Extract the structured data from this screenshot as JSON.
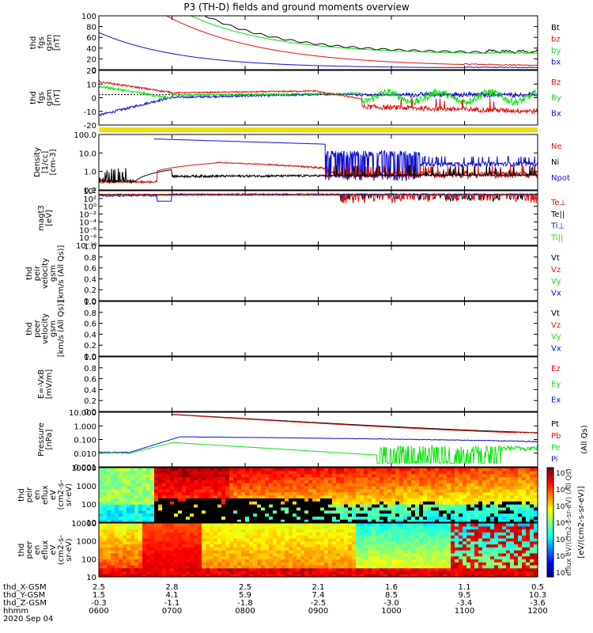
{
  "title": "P3 (TH-D) fields and ground moments overview",
  "date": "2020 Sep 04",
  "colors": {
    "black": "#000000",
    "red": "#e01010",
    "green": "#10e010",
    "blue": "#1010d0",
    "yellow": "#f0e000"
  },
  "chart_data": [
    {
      "type": "line",
      "id": "p1",
      "ylabel": [
        "thd",
        "fgs",
        "gsm",
        "[nT]"
      ],
      "yscale": "linear",
      "ylim": [
        0,
        100
      ],
      "yticks": [
        "100",
        "80",
        "60",
        "40",
        "20",
        "0"
      ],
      "legend": [
        {
          "text": "Bt",
          "color": "#000000"
        },
        {
          "text": "bz",
          "color": "#e01010"
        },
        {
          "text": "by",
          "color": "#10e010"
        },
        {
          "text": "bx",
          "color": "#1010d0"
        }
      ]
    },
    {
      "type": "line",
      "id": "p2",
      "ylabel": [
        "thd",
        "fgs",
        "gsm",
        "[nT]"
      ],
      "yscale": "linear",
      "ylim": [
        -25,
        20
      ],
      "yticks": [
        "20",
        "10",
        "0",
        "-10",
        "-20"
      ],
      "legend": [
        {
          "text": "Bz",
          "color": "#e01010"
        },
        {
          "text": "By",
          "color": "#10e010"
        },
        {
          "text": "Bx",
          "color": "#1010d0"
        }
      ]
    },
    {
      "type": "line",
      "id": "p4",
      "ylabel": [
        "Density",
        "[1/cc]",
        "[cm-3]"
      ],
      "yscale": "log",
      "ylim": [
        0.05,
        300
      ],
      "yticks": [
        "100.0",
        "10.0",
        "1.0",
        "0.1"
      ],
      "legend": [
        {
          "text": "Ne",
          "color": "#e01010"
        },
        {
          "text": "Ni",
          "color": "#000000"
        },
        {
          "text": "Npot",
          "color": "#1010d0"
        }
      ]
    },
    {
      "type": "line",
      "id": "p5",
      "ylabel": [
        "magt3",
        "[eV]"
      ],
      "yscale": "log",
      "ylim": [
        1e-10,
        10000.0
      ],
      "yticks": [
        "10⁴",
        "10²",
        "10⁰",
        "10⁻²",
        "10⁻⁴",
        "10⁻⁶",
        "10⁻⁸",
        "10⁻¹⁰"
      ],
      "legend": [
        {
          "text": "Te⊥",
          "color": "#e01010"
        },
        {
          "text": "Te||",
          "color": "#000000"
        },
        {
          "text": "Ti⊥",
          "color": "#1010d0"
        },
        {
          "text": "Ti||",
          "color": "#10e010"
        }
      ]
    },
    {
      "type": "line",
      "id": "p6",
      "ylabel": [
        "thd",
        "peir",
        "velocity",
        "gsm",
        "[km/s (All Qs)]"
      ],
      "yscale": "linear",
      "ylim": [
        0,
        1
      ],
      "yticks": [
        "1.0",
        "0.8",
        "0.6",
        "0.4",
        "0.2",
        "0.0"
      ],
      "legend": [
        {
          "text": "Vt",
          "color": "#000000"
        },
        {
          "text": "Vz",
          "color": "#e01010"
        },
        {
          "text": "Vy",
          "color": "#10e010"
        },
        {
          "text": "Vx",
          "color": "#1010d0"
        }
      ]
    },
    {
      "type": "line",
      "id": "p7",
      "ylabel": [
        "thd",
        "peer",
        "velocity",
        "gsm",
        "[km/s (All Qs)]"
      ],
      "yscale": "linear",
      "ylim": [
        0,
        1
      ],
      "yticks": [
        "1.0",
        "0.8",
        "0.6",
        "0.4",
        "0.2",
        "0.0"
      ],
      "legend": [
        {
          "text": "Vt",
          "color": "#000000"
        },
        {
          "text": "Vz",
          "color": "#e01010"
        },
        {
          "text": "Vy",
          "color": "#10e010"
        },
        {
          "text": "Vx",
          "color": "#1010d0"
        }
      ]
    },
    {
      "type": "line",
      "id": "p8",
      "ylabel": [
        "E=-VxB",
        "[mV/m]"
      ],
      "yscale": "linear",
      "ylim": [
        0,
        1
      ],
      "yticks": [
        "1.0",
        "0.8",
        "0.6",
        "0.4",
        "0.2",
        "0.0"
      ],
      "legend": [
        {
          "text": "Ez",
          "color": "#e01010"
        },
        {
          "text": "Ey",
          "color": "#10e010"
        },
        {
          "text": "Ex",
          "color": "#1010d0"
        }
      ]
    },
    {
      "type": "line",
      "id": "p9",
      "ylabel": [
        "Pressure",
        "[nPa]"
      ],
      "yscale": "log",
      "ylim": [
        0.001,
        30
      ],
      "yticks": [
        "10.000",
        "1.000",
        "0.100",
        "0.010",
        "0.001"
      ],
      "legend": [
        {
          "text": "Pt",
          "color": "#000000"
        },
        {
          "text": "Pb",
          "color": "#e01010"
        },
        {
          "text": "Pe",
          "color": "#10e010"
        },
        {
          "text": "Pi",
          "color": "#1010d0"
        }
      ],
      "side_label": "(All Qs)"
    },
    {
      "type": "heatmap",
      "id": "p10",
      "ylabel": [
        "thd",
        "peir",
        "en",
        "eflux",
        "eV",
        "(cm2-s-",
        "sr-eV)"
      ],
      "yscale": "log",
      "ylim": [
        5,
        25000
      ],
      "yticks": [
        "10000",
        "1000",
        "100",
        "10"
      ]
    },
    {
      "type": "heatmap",
      "id": "p11",
      "ylabel": [
        "thd",
        "peer",
        "en",
        "eflux",
        "eV",
        "(cm2-s-",
        "sr-eV)"
      ],
      "yscale": "log",
      "ylim": [
        5,
        25000
      ],
      "yticks": [
        "10000",
        "1000",
        "100",
        "10"
      ]
    }
  ],
  "colorbar": {
    "labels": [
      "10⁷",
      "10⁶",
      "10⁵",
      "10⁴",
      "10³",
      "10²",
      "10¹"
    ],
    "side_label": "[eV/(cm2-s-sr-eV)]",
    "overlay_label": "eflux eV/(cm2-s-sr-eV) (All Qs)"
  },
  "x_axis": {
    "rows": [
      {
        "label": "thd_X-GSM",
        "values": [
          "2.5",
          "2.8",
          "2.5",
          "2.1",
          "1.6",
          "1.1",
          "0.5"
        ]
      },
      {
        "label": "thd_Y-GSM",
        "values": [
          "1.5",
          "4.1",
          "5.9",
          "7.4",
          "8.5",
          "9.5",
          "10.3"
        ]
      },
      {
        "label": "thd_Z-GSM",
        "values": [
          "-0.3",
          "-1.1",
          "-1.8",
          "-2.5",
          "-3.0",
          "-3.4",
          "-3.6"
        ]
      },
      {
        "label": "hhmm",
        "values": [
          "0600",
          "0700",
          "0800",
          "0900",
          "1000",
          "1100",
          "1200"
        ]
      }
    ],
    "time_range_hours": [
      6,
      12
    ]
  }
}
